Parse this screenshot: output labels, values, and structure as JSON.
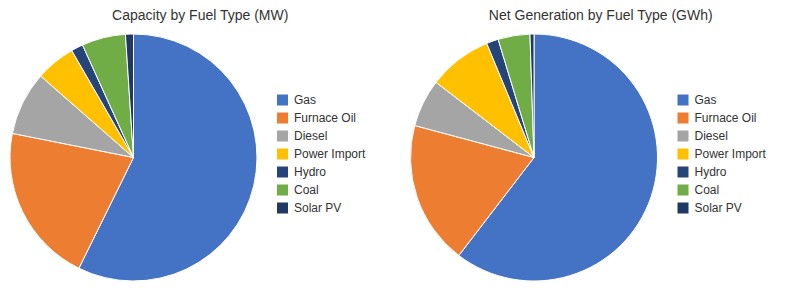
{
  "chart_data": [
    {
      "type": "pie",
      "title": "Capacity by Fuel Type (MW)",
      "categories": [
        "Gas",
        "Furnace Oil",
        "Diesel",
        "Power Import",
        "Hydro",
        "Coal",
        "Solar PV"
      ],
      "values": [
        55,
        20,
        8,
        5,
        1.5,
        5.5,
        1
      ],
      "colors": [
        "#4472C4",
        "#ED7D31",
        "#A5A5A5",
        "#FFC000",
        "#264478",
        "#70AD47",
        "#203864"
      ],
      "legend": "right"
    },
    {
      "type": "pie",
      "title": "Net Generation by Fuel Type (GWh)",
      "categories": [
        "Gas",
        "Furnace Oil",
        "Diesel",
        "Power Import",
        "Hydro",
        "Coal",
        "Solar PV"
      ],
      "values": [
        58,
        18,
        6,
        8,
        1.5,
        4,
        0.5
      ],
      "colors": [
        "#4472C4",
        "#ED7D31",
        "#A5A5A5",
        "#FFC000",
        "#264478",
        "#70AD47",
        "#203864"
      ],
      "legend": "right"
    }
  ]
}
